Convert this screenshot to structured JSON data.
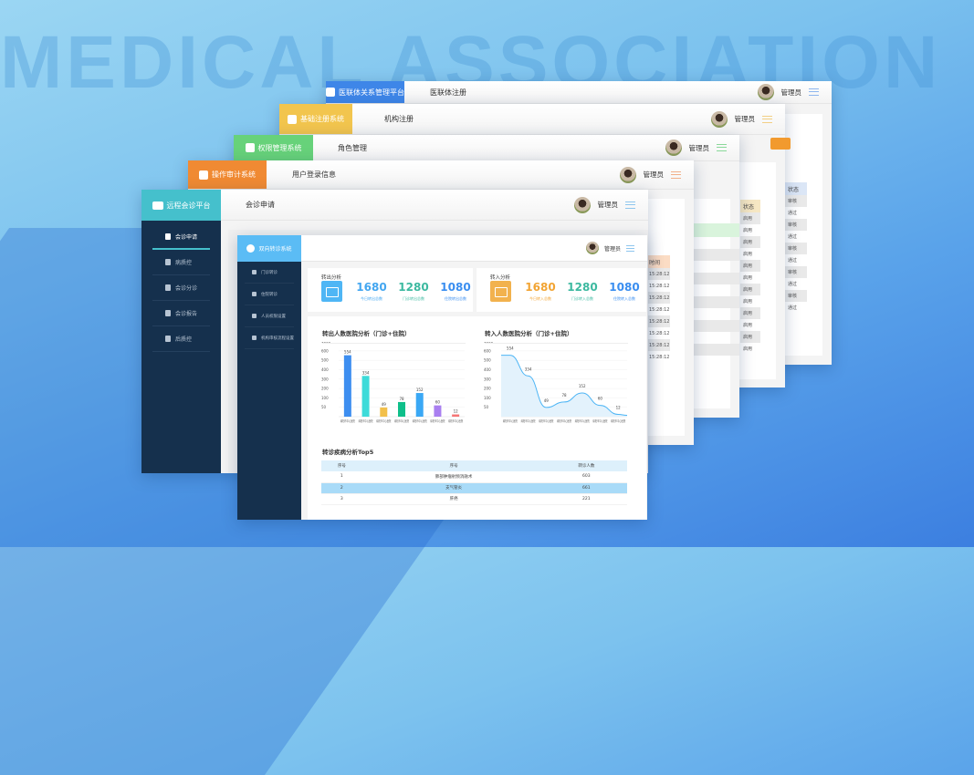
{
  "background_text": "MEDICAL ASSOCIATION",
  "user": {
    "name": "管理员"
  },
  "windows": {
    "w5": {
      "tab": "医联体关系管理平台",
      "title": "医联体注册",
      "color": "#3e86e8",
      "col_header": "状态",
      "rows": [
        "审核",
        "通过",
        "审核",
        "通过",
        "审核",
        "通过",
        "审核",
        "通过",
        "审核",
        "通过"
      ]
    },
    "w4": {
      "tab": "基础注册系统",
      "title": "机构注册",
      "color": "#f2c54e",
      "col_header": "状态",
      "rows": [
        "启用",
        "启用",
        "启用",
        "启用",
        "启用",
        "启用",
        "启用",
        "启用",
        "启用",
        "启用",
        "启用",
        "启用"
      ]
    },
    "w3": {
      "tab": "权限管理系统",
      "title": "角色管理",
      "color": "#67d27a"
    },
    "w2": {
      "tab": "操作审计系统",
      "title": "用户登录信息",
      "color": "#f08a33",
      "col_header": "时间",
      "rows": [
        "15:28:12",
        "15:28:12",
        "15:28:12",
        "15:28:12",
        "15:28:12",
        "15:28:12",
        "15:28:12",
        "15:28:12"
      ]
    },
    "w1": {
      "tab": "远程会诊平台",
      "title": "会诊申请",
      "color": "#45c0cc",
      "sidebar": [
        {
          "label": "会诊申请",
          "active": true
        },
        {
          "label": "病质控"
        },
        {
          "label": "会诊分诊"
        },
        {
          "label": "会诊报告"
        },
        {
          "label": "后质控"
        }
      ]
    },
    "w0": {
      "tab": "双向转诊系统",
      "color": "#5bbcf5",
      "sidebar": [
        {
          "label": "门诊转诊"
        },
        {
          "label": "住院转诊"
        },
        {
          "label": "人员权限设置"
        },
        {
          "label": "机构审核流程设置"
        }
      ],
      "out_card": {
        "label": "转出分析",
        "color": "#4fb6f5",
        "stats": [
          {
            "value": "1680",
            "text": "今日转出总数",
            "color": "#43a6f0"
          },
          {
            "value": "1280",
            "text": "门诊转出总数",
            "color": "#3db9a0"
          },
          {
            "value": "1080",
            "text": "住院转出总数",
            "color": "#3a8ef0"
          }
        ]
      },
      "in_card": {
        "label": "转入分析",
        "color": "#f2b24e",
        "stats": [
          {
            "value": "1680",
            "text": "今日转入总数",
            "color": "#f2a433"
          },
          {
            "value": "1280",
            "text": "门诊转入总数",
            "color": "#3db9a0"
          },
          {
            "value": "1080",
            "text": "住院转入总数",
            "color": "#3a8ef0"
          }
        ]
      },
      "table": {
        "title": "转诊疾病分析Top5",
        "headers": [
          "序号",
          "序号",
          "转诊人数"
        ],
        "rows": [
          [
            "1",
            "肺部肿瘤射频消融术",
            "603"
          ],
          [
            "2",
            "支气管炎",
            "661"
          ],
          [
            "3",
            "肝癌",
            "221"
          ]
        ],
        "selected_row": 1
      }
    }
  },
  "chart_data": [
    {
      "type": "bar",
      "title": "转出人数医院分析（门诊+住院）",
      "categories": [
        "绵阳市中心医院",
        "绵阳市中心医院",
        "绵阳市中心医院",
        "绵阳市中心医院",
        "绵阳市中心医院",
        "绵阳市中心医院",
        "绵阳市中心医院"
      ],
      "values": [
        554,
        334,
        49,
        78,
        152,
        60,
        12
      ],
      "y_ticks": [
        50,
        100,
        200,
        300,
        400,
        500,
        600,
        1000
      ],
      "colors": [
        "#3d8ef0",
        "#3ddbd9",
        "#f2c04b",
        "#0fbf8a",
        "#3aa8f5",
        "#a97ff0",
        "#f57575"
      ],
      "grid": true
    },
    {
      "type": "area",
      "title": "转入人数医院分析（门诊+住院）",
      "categories": [
        "绵阳市中心医院",
        "绵阳市中心医院",
        "绵阳市中心医院",
        "绵阳市中心医院",
        "绵阳市中心医院",
        "绵阳市中心医院",
        "绵阳市中心医院"
      ],
      "values": [
        554,
        334,
        49,
        78,
        152,
        60,
        12
      ],
      "y_ticks": [
        50,
        100,
        200,
        300,
        400,
        500,
        600,
        1000
      ],
      "color": "#4db5f5",
      "grid": true
    }
  ]
}
